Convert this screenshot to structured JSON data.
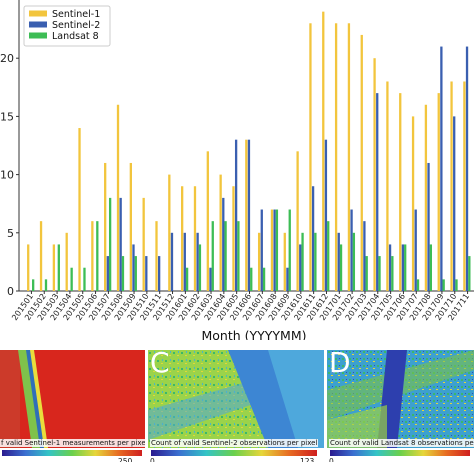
{
  "chart_data": {
    "type": "bar",
    "xlabel": "Month (YYYYMM)",
    "ylabel": "",
    "ylim": [
      0,
      25
    ],
    "yticks": [
      "0",
      "5",
      "10",
      "15",
      "20"
    ],
    "grid": false,
    "legend_position": "top-left",
    "categories": [
      "201501",
      "201502",
      "201503",
      "201504",
      "201505",
      "201506",
      "201507",
      "201508",
      "201509",
      "201510",
      "201511",
      "201512",
      "201601",
      "201602",
      "201603",
      "201604",
      "201605",
      "201606",
      "201607",
      "201608",
      "201609",
      "201610",
      "201611",
      "201612",
      "201701",
      "201702",
      "201703",
      "201704",
      "201705",
      "201706",
      "201707",
      "201708",
      "201709",
      "201710",
      "201711"
    ],
    "series": [
      {
        "name": "Sentinel-1",
        "color": "#f2c53d",
        "values": [
          4,
          6,
          4,
          5,
          14,
          6,
          11,
          16,
          11,
          8,
          6,
          10,
          9,
          9,
          12,
          10,
          9,
          13,
          5,
          7,
          5,
          12,
          23,
          24,
          23,
          23,
          22,
          20,
          18,
          17,
          15,
          16,
          17,
          18,
          18
        ]
      },
      {
        "name": "Sentinel-2",
        "color": "#3a5fb0",
        "values": [
          0,
          0,
          0,
          0,
          0,
          0,
          3,
          8,
          4,
          3,
          3,
          5,
          5,
          5,
          2,
          8,
          13,
          13,
          7,
          7,
          2,
          4,
          9,
          13,
          5,
          7,
          6,
          17,
          4,
          4,
          7,
          11,
          21,
          15,
          21
        ]
      },
      {
        "name": "Landsat 8",
        "color": "#3dbd55",
        "values": [
          1,
          1,
          4,
          2,
          2,
          6,
          8,
          3,
          3,
          0,
          0,
          0,
          2,
          4,
          6,
          6,
          6,
          2,
          2,
          7,
          7,
          5,
          5,
          6,
          4,
          5,
          3,
          3,
          3,
          4,
          1,
          4,
          1,
          1,
          3
        ]
      }
    ]
  },
  "maps": [
    {
      "letter": "",
      "caption": "f valid Sentinel-1 measurements per pixel",
      "cbar_min": "",
      "cbar_max": "250"
    },
    {
      "letter": "C",
      "caption": "Count of valid Sentinel-2 observations per pixel",
      "cbar_min": "0",
      "cbar_max": "123"
    },
    {
      "letter": "D",
      "caption": "Count of valid Landsat 8 observations per pixel",
      "cbar_min": "0",
      "cbar_max": ""
    }
  ]
}
